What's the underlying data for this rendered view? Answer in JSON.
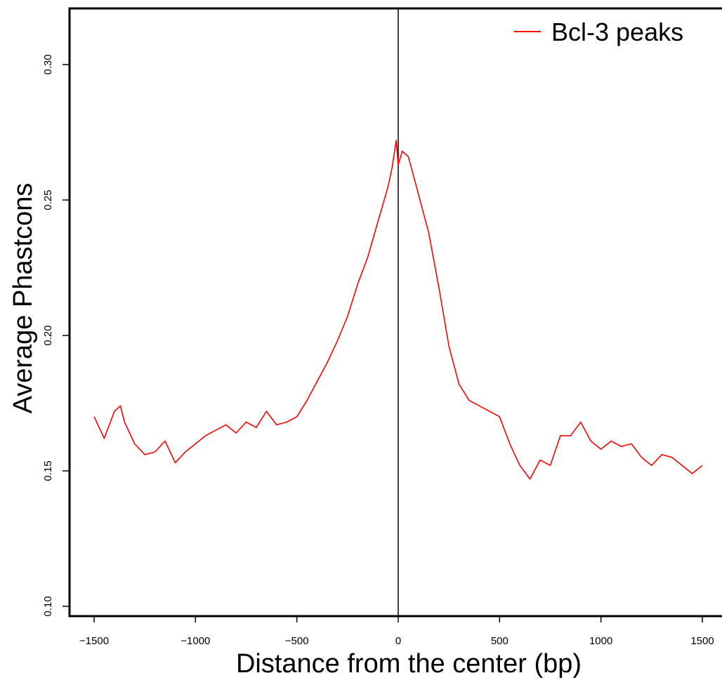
{
  "chart_data": {
    "type": "line",
    "title": "",
    "xlabel": "Distance from the center (bp)",
    "ylabel": "Average Phastcons",
    "xlim": [
      -1500,
      1500
    ],
    "ylim": [
      0.1,
      0.32
    ],
    "x_ticks": [
      -1500,
      -1000,
      -500,
      0,
      500,
      1000,
      1500
    ],
    "x_tick_labels": [
      "−1500",
      "−1000",
      "−500",
      "0",
      "500",
      "1000",
      "1500"
    ],
    "y_ticks": [
      0.1,
      0.15,
      0.2,
      0.25,
      0.3
    ],
    "y_tick_labels": [
      "0.10",
      "0.15",
      "0.20",
      "0.25",
      "0.30"
    ],
    "grid": false,
    "legend": {
      "position": "top-right",
      "entries": [
        "Bcl-3 peaks"
      ]
    },
    "vertical_reference_line": 0,
    "series": [
      {
        "name": "Bcl-3 peaks",
        "color": "#ff0000",
        "x": [
          -1500,
          -1450,
          -1400,
          -1370,
          -1350,
          -1300,
          -1250,
          -1200,
          -1150,
          -1100,
          -1050,
          -1000,
          -950,
          -900,
          -850,
          -800,
          -750,
          -700,
          -650,
          -600,
          -550,
          -500,
          -450,
          -400,
          -350,
          -300,
          -250,
          -200,
          -150,
          -100,
          -50,
          -30,
          -10,
          0,
          20,
          50,
          100,
          150,
          200,
          250,
          300,
          350,
          400,
          450,
          500,
          550,
          600,
          650,
          700,
          750,
          800,
          850,
          900,
          950,
          1000,
          1050,
          1100,
          1150,
          1200,
          1250,
          1300,
          1350,
          1400,
          1450,
          1500
        ],
        "y": [
          0.17,
          0.162,
          0.172,
          0.174,
          0.168,
          0.16,
          0.156,
          0.157,
          0.161,
          0.153,
          0.157,
          0.16,
          0.163,
          0.165,
          0.167,
          0.164,
          0.168,
          0.166,
          0.172,
          0.167,
          0.168,
          0.17,
          0.176,
          0.183,
          0.19,
          0.198,
          0.207,
          0.219,
          0.229,
          0.242,
          0.255,
          0.262,
          0.272,
          0.263,
          0.268,
          0.266,
          0.252,
          0.238,
          0.218,
          0.196,
          0.182,
          0.176,
          0.174,
          0.172,
          0.17,
          0.16,
          0.152,
          0.147,
          0.154,
          0.152,
          0.163,
          0.163,
          0.168,
          0.161,
          0.158,
          0.161,
          0.159,
          0.16,
          0.155,
          0.152,
          0.156,
          0.155,
          0.152,
          0.149,
          0.152
        ]
      }
    ]
  }
}
